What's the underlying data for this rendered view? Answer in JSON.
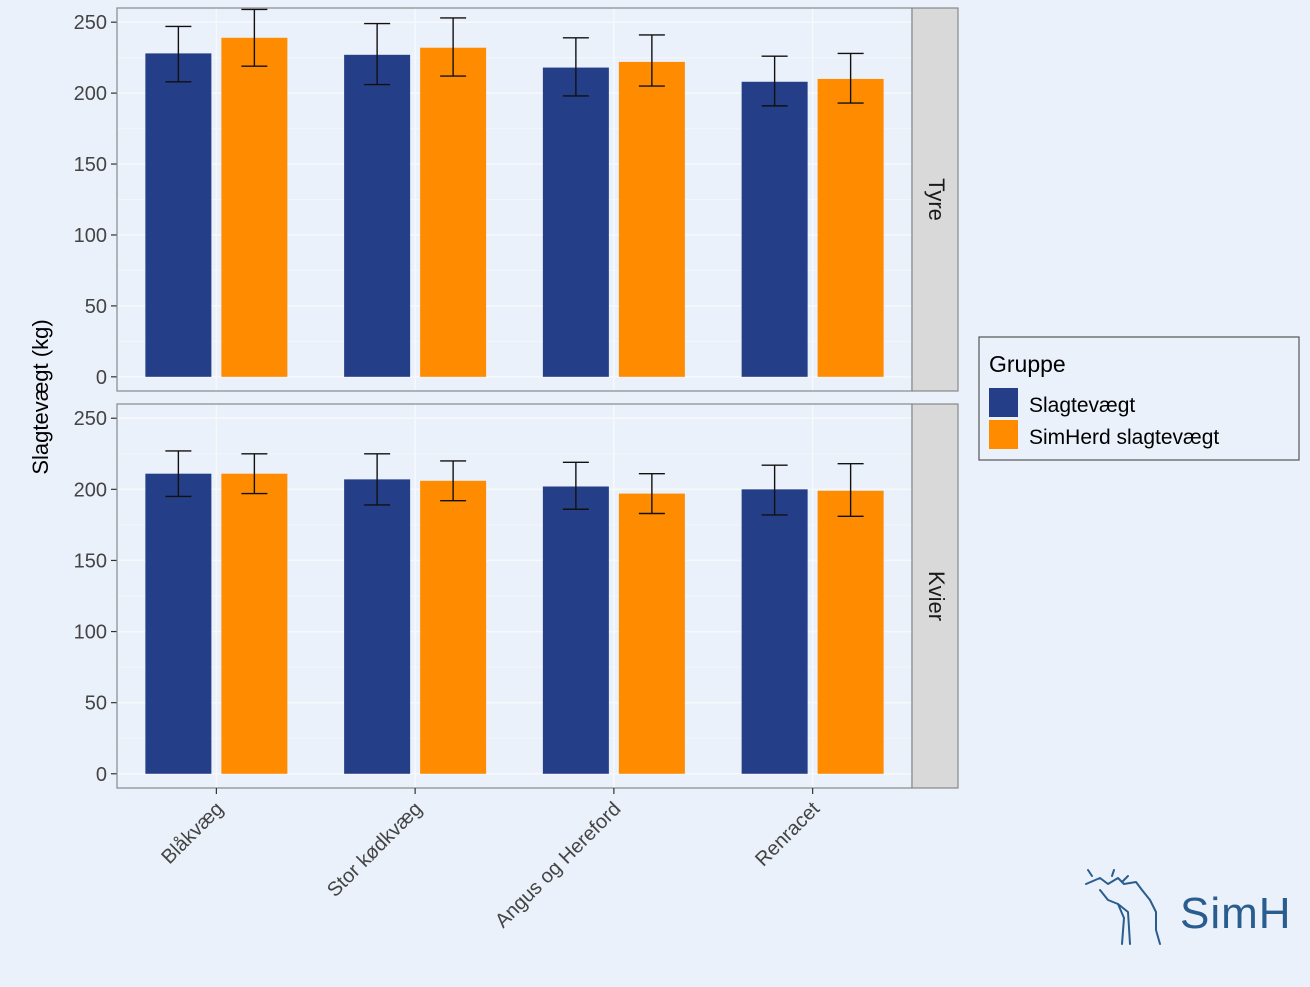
{
  "chart_data": {
    "type": "bar",
    "ylabel": "Slagtevægt (kg)",
    "xlabel": "",
    "ylim": [
      -10,
      260
    ],
    "yticks": [
      0,
      50,
      100,
      150,
      200,
      250
    ],
    "grid": true,
    "categories": [
      "Blåkvæg",
      "Stor kødkvæg",
      "Angus og Hereford",
      "Renracet"
    ],
    "legend": {
      "title": "Gruppe",
      "position": "right",
      "entries": [
        "Slagtevægt",
        "SimHerd slagtevægt"
      ]
    },
    "series_colors": [
      "#253e88",
      "#ff8c00"
    ],
    "facets": [
      {
        "label": "Tyre",
        "series": [
          {
            "name": "Slagtevægt",
            "values": [
              228,
              227,
              218,
              208
            ],
            "err_low": [
              208,
              206,
              198,
              191
            ],
            "err_high": [
              247,
              249,
              239,
              226
            ]
          },
          {
            "name": "SimHerd slagtevægt",
            "values": [
              239,
              232,
              222,
              210
            ],
            "err_low": [
              219,
              212,
              205,
              193
            ],
            "err_high": [
              259,
              253,
              241,
              228
            ]
          }
        ]
      },
      {
        "label": "Kvier",
        "series": [
          {
            "name": "Slagtevægt",
            "values": [
              211,
              207,
              202,
              200
            ],
            "err_low": [
              195,
              189,
              186,
              182
            ],
            "err_high": [
              227,
              225,
              219,
              217
            ]
          },
          {
            "name": "SimHerd slagtevægt",
            "values": [
              211,
              206,
              197,
              199
            ],
            "err_low": [
              197,
              192,
              183,
              181
            ],
            "err_high": [
              225,
              220,
              211,
              218
            ]
          }
        ]
      }
    ]
  },
  "brand": {
    "logo_text": "SimH",
    "color": "#2a5d8f"
  }
}
